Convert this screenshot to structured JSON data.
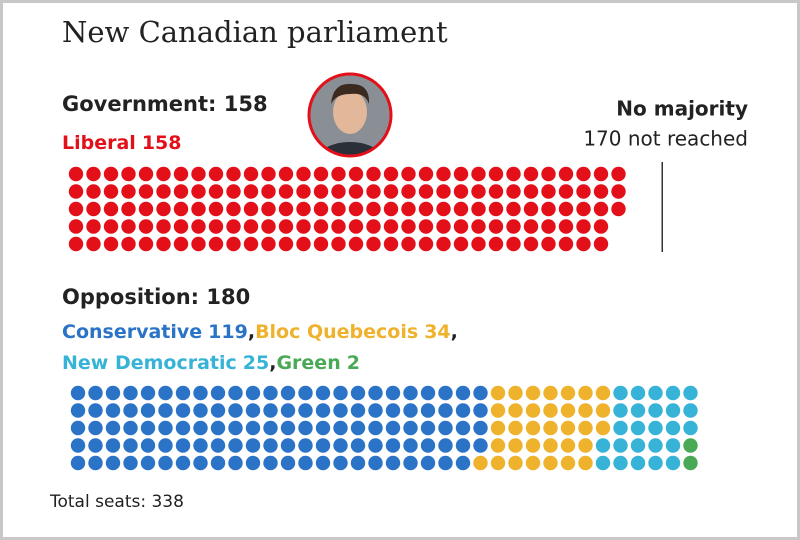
{
  "title": "New Canadian parliament",
  "chart_data": [
    {
      "type": "waffle",
      "title": "Government: 158",
      "rows": 5,
      "series": [
        {
          "name": "Liberal",
          "color": "#e3101a",
          "value": 158
        }
      ],
      "threshold": {
        "title": "No majority",
        "text": "170 not reached",
        "value": 170
      }
    },
    {
      "type": "waffle",
      "title": "Opposition: 180",
      "rows": 5,
      "separator": ",",
      "series": [
        {
          "name": "Conservative",
          "color": "#2a73c6",
          "value": 119
        },
        {
          "name": "Bloc Quebecois",
          "color": "#eeb22c",
          "value": 34
        },
        {
          "name": "New Democratic",
          "color": "#36b3d6",
          "value": 25
        },
        {
          "name": "Green",
          "color": "#4aa957",
          "value": 2
        }
      ]
    }
  ],
  "footer": "Total seats: 338"
}
